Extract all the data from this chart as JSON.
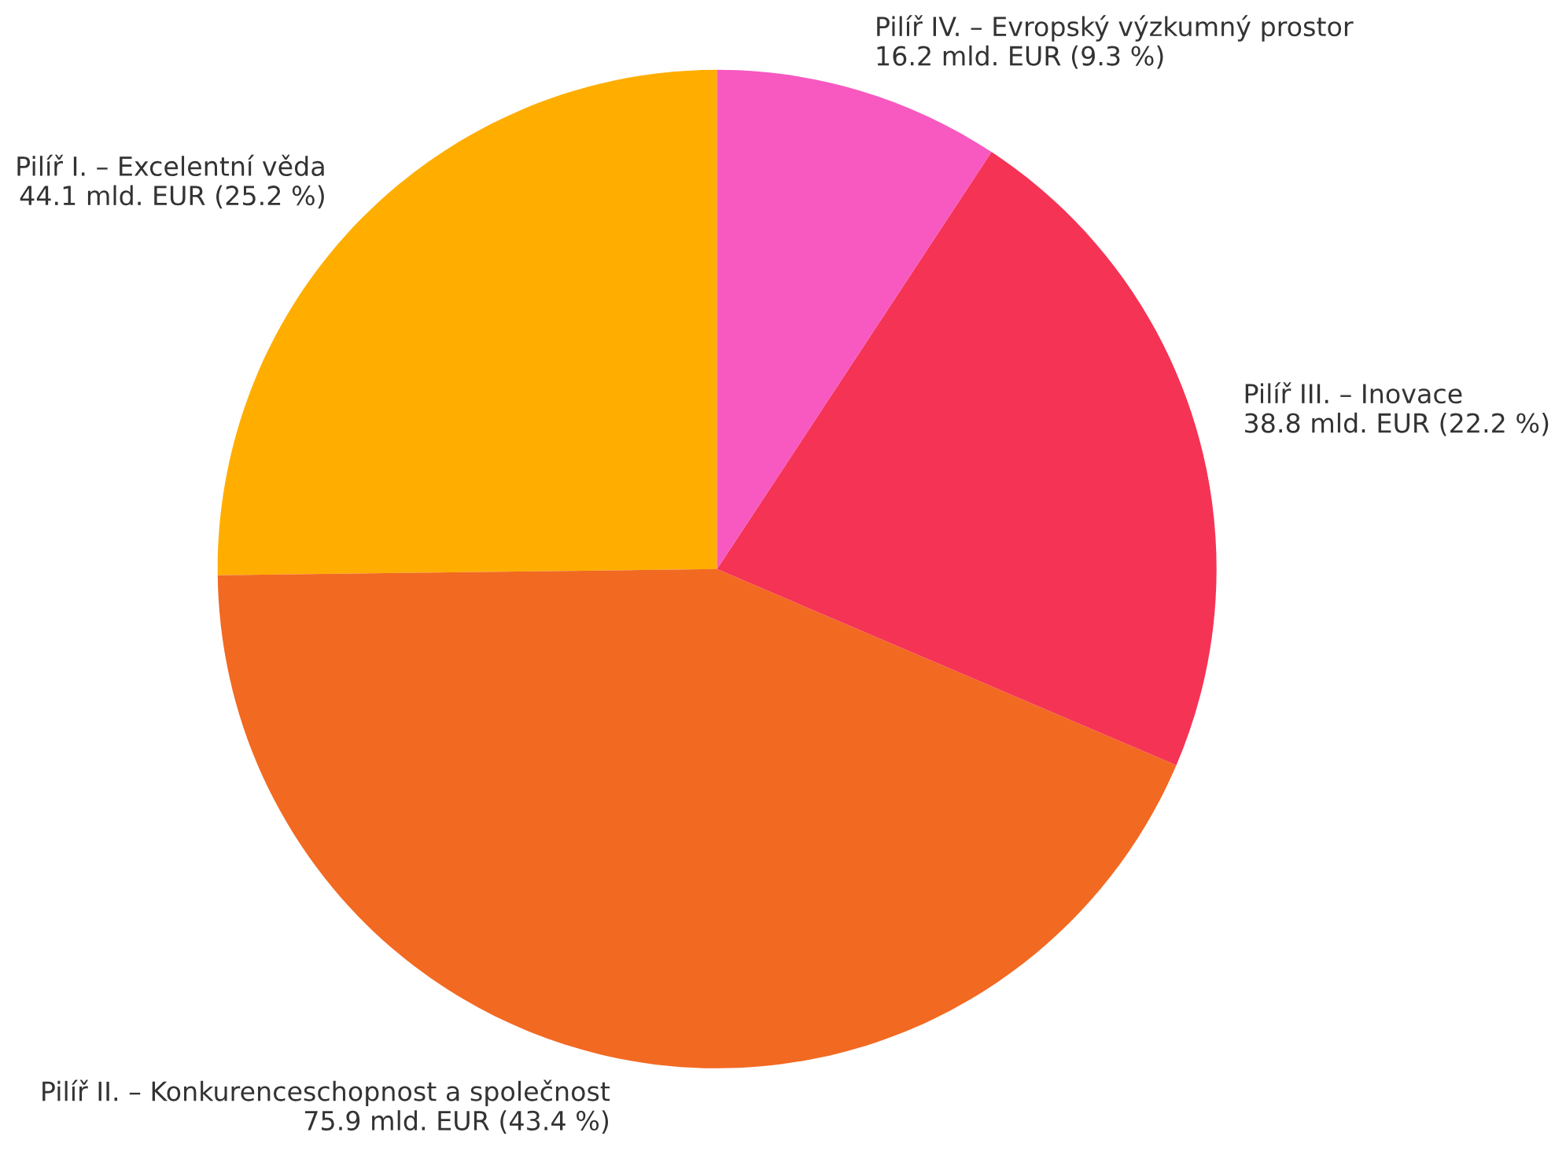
{
  "chart_data": {
    "type": "pie",
    "categories": [
      "Pilíř I. – Excelentní věda",
      "Pilíř II. – Konkurenceschopnost a společnost",
      "Pilíř III. – Inovace",
      "Pilíř IV. – Evropský výzkumný prostor"
    ],
    "values": [
      44.1,
      75.9,
      38.8,
      16.2
    ],
    "colors": [
      "#ffae00",
      "#f26922",
      "#f53355",
      "#f759c0"
    ],
    "value_labels": [
      "44.1 mld. EUR (25.2 %)",
      "75.9 mld. EUR (43.4 %)",
      "38.8 mld. EUR (22.2 %)",
      "16.2 mld. EUR (9.3 %)"
    ]
  }
}
